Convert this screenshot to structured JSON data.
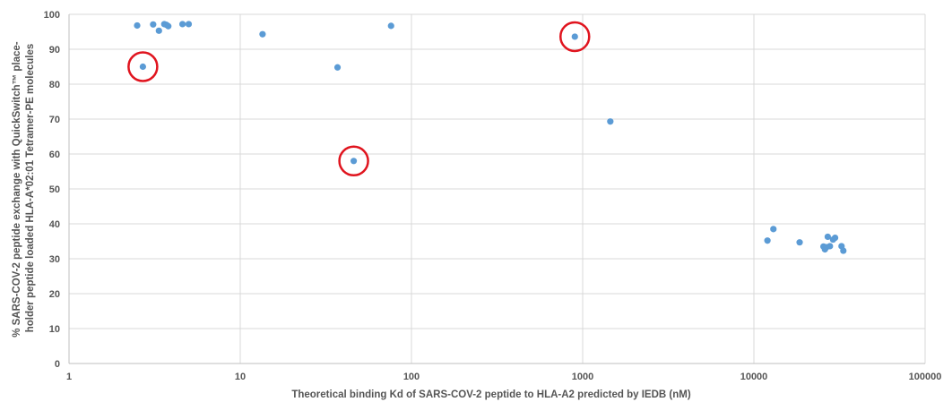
{
  "chart_data": {
    "type": "scatter",
    "xlabel": "Theoretical binding Kd of SARS-COV-2 peptide to HLA-A2 predicted by IEDB (nM)",
    "ylabel_lines": [
      "% SARS-COV-2 peptide exchange with QuickSwitch™ place-",
      "holder peptide loaded HLA-A*02:01 Tetramer-PE molecules"
    ],
    "x_scale": "log",
    "xlim": [
      1,
      100000
    ],
    "ylim": [
      0,
      100
    ],
    "x_ticks": [
      1,
      10,
      100,
      1000,
      10000,
      100000
    ],
    "x_tick_labels": [
      "1",
      "10",
      "100",
      "1000",
      "10000",
      "100000"
    ],
    "y_ticks": [
      0,
      10,
      20,
      30,
      40,
      50,
      60,
      70,
      80,
      90,
      100
    ],
    "y_tick_labels": [
      "0",
      "10",
      "20",
      "30",
      "40",
      "50",
      "60",
      "70",
      "80",
      "90",
      "100"
    ],
    "grid": "vertical-and-horizontal",
    "colors": {
      "point": "#5b9bd5",
      "highlight": "#e0141e",
      "grid": "#d9d9d9",
      "axis": "#bfbfbf"
    },
    "points": [
      {
        "x": 2.5,
        "y": 96.8
      },
      {
        "x": 3.1,
        "y": 97.1
      },
      {
        "x": 3.6,
        "y": 97.2
      },
      {
        "x": 3.7,
        "y": 97.0
      },
      {
        "x": 3.8,
        "y": 96.6
      },
      {
        "x": 4.6,
        "y": 97.2
      },
      {
        "x": 5.0,
        "y": 97.2
      },
      {
        "x": 3.35,
        "y": 95.3
      },
      {
        "x": 2.7,
        "y": 85.0
      },
      {
        "x": 13.5,
        "y": 94.3
      },
      {
        "x": 37,
        "y": 84.8
      },
      {
        "x": 76,
        "y": 96.7
      },
      {
        "x": 46,
        "y": 58.0
      },
      {
        "x": 900,
        "y": 93.6
      },
      {
        "x": 1450,
        "y": 69.3
      },
      {
        "x": 12000,
        "y": 35.2
      },
      {
        "x": 13000,
        "y": 38.5
      },
      {
        "x": 18500,
        "y": 34.7
      },
      {
        "x": 25500,
        "y": 33.5
      },
      {
        "x": 26000,
        "y": 32.7
      },
      {
        "x": 26500,
        "y": 33.3
      },
      {
        "x": 27000,
        "y": 36.3
      },
      {
        "x": 27800,
        "y": 33.6
      },
      {
        "x": 29000,
        "y": 35.5
      },
      {
        "x": 29800,
        "y": 36.0
      },
      {
        "x": 32500,
        "y": 33.6
      },
      {
        "x": 33300,
        "y": 32.3
      }
    ],
    "highlighted": [
      {
        "x": 2.7,
        "y": 85.0
      },
      {
        "x": 46,
        "y": 58.0
      },
      {
        "x": 900,
        "y": 93.6
      }
    ]
  }
}
